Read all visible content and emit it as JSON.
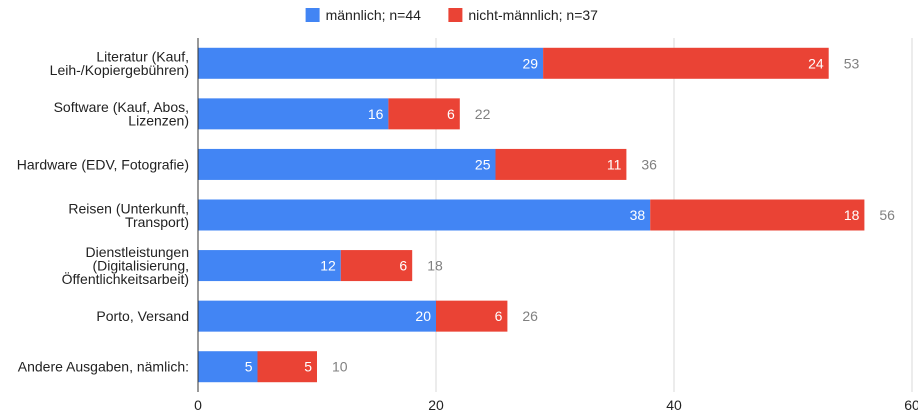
{
  "chart_data": {
    "type": "bar",
    "stacked": true,
    "orientation": "horizontal",
    "categories": [
      [
        "Literatur (Kauf,",
        "Leih-/Kopiergebühren)"
      ],
      [
        "Software (Kauf, Abos,",
        "Lizenzen)"
      ],
      [
        "Hardware (EDV, Fotografie)"
      ],
      [
        "Reisen (Unterkunft,",
        "Transport)"
      ],
      [
        "Dienstleistungen",
        "(Digitalisierung,",
        "Öffentlichkeitsarbeit)"
      ],
      [
        "Porto, Versand"
      ],
      [
        "Andere Ausgaben, nämlich:"
      ]
    ],
    "series": [
      {
        "name": "männlich; n=44",
        "color": "#4285f4",
        "values": [
          29,
          16,
          25,
          38,
          12,
          20,
          5
        ]
      },
      {
        "name": "nicht-männlich; n=37",
        "color": "#ea4335",
        "values": [
          24,
          6,
          11,
          18,
          6,
          6,
          5
        ]
      }
    ],
    "totals": [
      53,
      22,
      36,
      56,
      18,
      26,
      10
    ],
    "xlim": [
      0,
      60
    ],
    "xticks": [
      "0",
      "20",
      "40",
      "60"
    ],
    "grid": true,
    "legend_position": "top"
  }
}
